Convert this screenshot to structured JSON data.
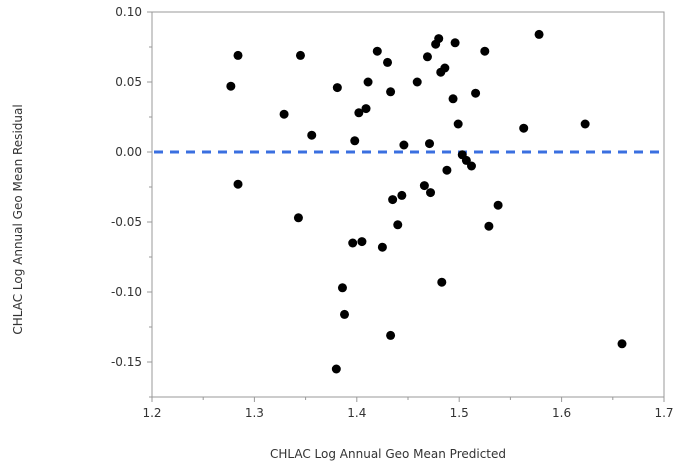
{
  "chart_data": {
    "type": "scatter",
    "xlabel": "CHLAC Log Annual Geo Mean Predicted",
    "ylabel": "CHLAC Log Annual Geo Mean Residual",
    "xlim": [
      1.2,
      1.7
    ],
    "ylim": [
      -0.175,
      0.1
    ],
    "xticks": [
      1.2,
      1.3,
      1.4,
      1.5,
      1.6,
      1.7
    ],
    "xtick_labels": [
      "1.2",
      "1.3",
      "1.4",
      "1.5",
      "1.6",
      "1.7"
    ],
    "yticks": [
      0.1,
      0.05,
      0.0,
      -0.05,
      -0.1,
      -0.15
    ],
    "ytick_labels": [
      "0.10",
      "0.05",
      "0.00",
      "-0.05",
      "-0.10",
      "-0.15"
    ],
    "reference_line": {
      "y": 0.0,
      "style": "dashed"
    },
    "grid": false,
    "colors": {
      "points": "#000000",
      "reference_line": "#3a6fe0",
      "frame": "#999999"
    },
    "points": [
      {
        "x": 1.277,
        "y": 0.047
      },
      {
        "x": 1.284,
        "y": 0.069
      },
      {
        "x": 1.284,
        "y": -0.023
      },
      {
        "x": 1.329,
        "y": 0.027
      },
      {
        "x": 1.343,
        "y": -0.047
      },
      {
        "x": 1.345,
        "y": 0.069
      },
      {
        "x": 1.356,
        "y": 0.012
      },
      {
        "x": 1.381,
        "y": 0.046
      },
      {
        "x": 1.38,
        "y": -0.155
      },
      {
        "x": 1.386,
        "y": -0.097
      },
      {
        "x": 1.388,
        "y": -0.116
      },
      {
        "x": 1.396,
        "y": -0.065
      },
      {
        "x": 1.398,
        "y": 0.008
      },
      {
        "x": 1.402,
        "y": 0.028
      },
      {
        "x": 1.405,
        "y": -0.064
      },
      {
        "x": 1.409,
        "y": 0.031
      },
      {
        "x": 1.411,
        "y": 0.05
      },
      {
        "x": 1.42,
        "y": 0.072
      },
      {
        "x": 1.425,
        "y": -0.068
      },
      {
        "x": 1.43,
        "y": 0.064
      },
      {
        "x": 1.433,
        "y": 0.043
      },
      {
        "x": 1.433,
        "y": -0.131
      },
      {
        "x": 1.435,
        "y": -0.034
      },
      {
        "x": 1.44,
        "y": -0.052
      },
      {
        "x": 1.444,
        "y": -0.031
      },
      {
        "x": 1.446,
        "y": 0.005
      },
      {
        "x": 1.459,
        "y": 0.05
      },
      {
        "x": 1.466,
        "y": -0.024
      },
      {
        "x": 1.469,
        "y": 0.068
      },
      {
        "x": 1.471,
        "y": 0.006
      },
      {
        "x": 1.472,
        "y": -0.029
      },
      {
        "x": 1.477,
        "y": 0.077
      },
      {
        "x": 1.48,
        "y": 0.081
      },
      {
        "x": 1.482,
        "y": 0.057
      },
      {
        "x": 1.483,
        "y": -0.093
      },
      {
        "x": 1.486,
        "y": 0.06
      },
      {
        "x": 1.488,
        "y": -0.013
      },
      {
        "x": 1.494,
        "y": 0.038
      },
      {
        "x": 1.496,
        "y": 0.078
      },
      {
        "x": 1.499,
        "y": 0.02
      },
      {
        "x": 1.503,
        "y": -0.002
      },
      {
        "x": 1.507,
        "y": -0.006
      },
      {
        "x": 1.512,
        "y": -0.01
      },
      {
        "x": 1.516,
        "y": 0.042
      },
      {
        "x": 1.525,
        "y": 0.072
      },
      {
        "x": 1.529,
        "y": -0.053
      },
      {
        "x": 1.538,
        "y": -0.038
      },
      {
        "x": 1.563,
        "y": 0.017
      },
      {
        "x": 1.578,
        "y": 0.084
      },
      {
        "x": 1.623,
        "y": 0.02
      },
      {
        "x": 1.659,
        "y": -0.137
      }
    ]
  }
}
